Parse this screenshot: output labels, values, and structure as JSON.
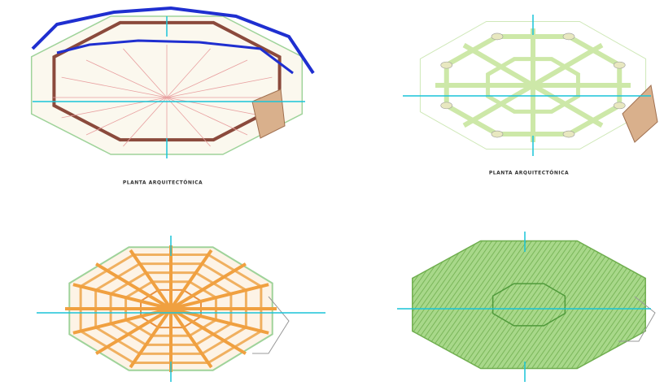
{
  "drawings": [
    {
      "caption": "PLANTA ARQUITECTÓNICA"
    },
    {
      "caption": "PLANTA ARQUITECTÓNICA"
    }
  ]
}
